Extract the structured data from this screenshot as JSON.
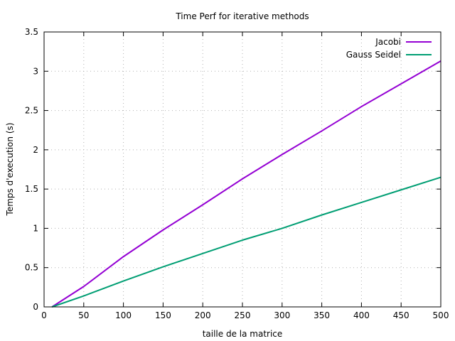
{
  "chart_data": {
    "type": "line",
    "title": "Time Perf for iterative methods",
    "xlabel": "taille de la matrice",
    "ylabel": "Temps d'execution (s)",
    "xlim": [
      0,
      500
    ],
    "ylim": [
      0,
      3.5
    ],
    "xticks": [
      0,
      50,
      100,
      150,
      200,
      250,
      300,
      350,
      400,
      450,
      500
    ],
    "yticks": [
      0,
      0.5,
      1,
      1.5,
      2,
      2.5,
      3,
      3.5
    ],
    "grid": true,
    "legend_position": "top-right",
    "series": [
      {
        "name": "Jacobi",
        "color": "#9400d3",
        "x": [
          10,
          50,
          100,
          150,
          200,
          250,
          300,
          350,
          400,
          450,
          500
        ],
        "y": [
          0,
          0.26,
          0.64,
          0.98,
          1.3,
          1.63,
          1.94,
          2.24,
          2.55,
          2.84,
          3.13
        ]
      },
      {
        "name": "Gauss Seidel",
        "color": "#009e73",
        "x": [
          10,
          50,
          100,
          150,
          200,
          250,
          300,
          350,
          400,
          450,
          500
        ],
        "y": [
          0,
          0.14,
          0.33,
          0.51,
          0.68,
          0.85,
          1.0,
          1.17,
          1.33,
          1.49,
          1.65
        ]
      }
    ]
  }
}
